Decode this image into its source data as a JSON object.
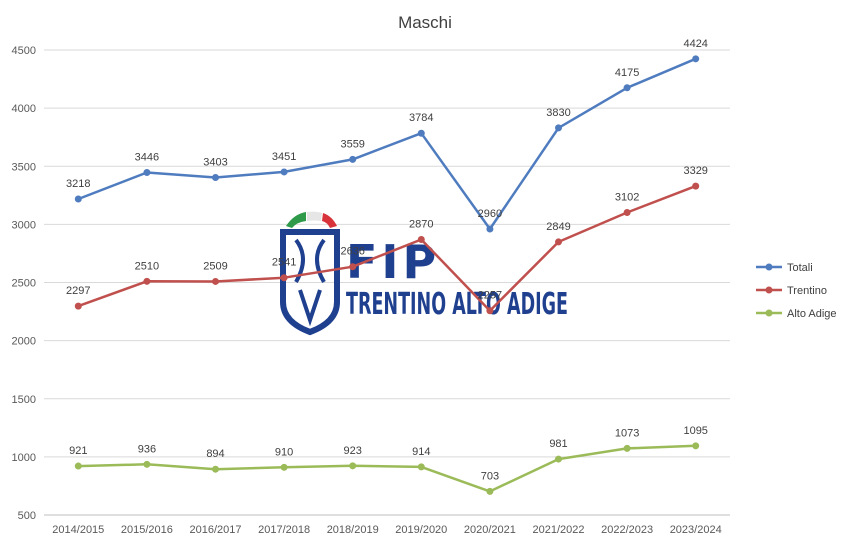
{
  "chart_data": {
    "type": "line",
    "title": "Maschi",
    "categories": [
      "2014/2015",
      "2015/2016",
      "2016/2017",
      "2017/2018",
      "2018/2019",
      "2019/2020",
      "2020/2021",
      "2021/2022",
      "2022/2023",
      "2023/2024"
    ],
    "series": [
      {
        "name": "Totali",
        "color": "#4f7cbf",
        "values": [
          3218,
          3446,
          3403,
          3451,
          3559,
          3784,
          2960,
          3830,
          4175,
          4424
        ]
      },
      {
        "name": "Trentino",
        "color": "#c0504d",
        "values": [
          2297,
          2510,
          2509,
          2541,
          2636,
          2870,
          2257,
          2849,
          3102,
          3329
        ]
      },
      {
        "name": "Alto Adige",
        "color": "#9bbb59",
        "values": [
          921,
          936,
          894,
          910,
          923,
          914,
          703,
          981,
          1073,
          1095
        ]
      }
    ],
    "ylim": [
      500,
      4500
    ],
    "yticks": [
      500,
      1000,
      1500,
      2000,
      2500,
      3000,
      3500,
      4000,
      4500
    ],
    "grid": true,
    "legend": "right"
  },
  "watermark": {
    "title": "FIP",
    "subtitle": "TRENTINO ALTO ADIGE",
    "brand_color": "#1f3f8f"
  }
}
